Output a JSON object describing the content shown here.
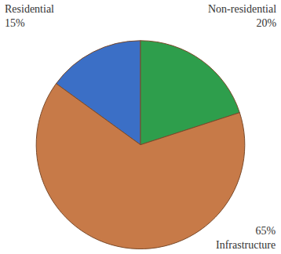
{
  "chart_data": {
    "type": "pie",
    "categories": [
      "Residential",
      "Non-residential",
      "Infrastructure"
    ],
    "values": [
      15,
      20,
      65
    ],
    "value_labels": [
      "15%",
      "20%",
      "65%"
    ],
    "colors": [
      "#3b6fc6",
      "#2e9e4c",
      "#c77a48"
    ],
    "data_labels": true
  }
}
